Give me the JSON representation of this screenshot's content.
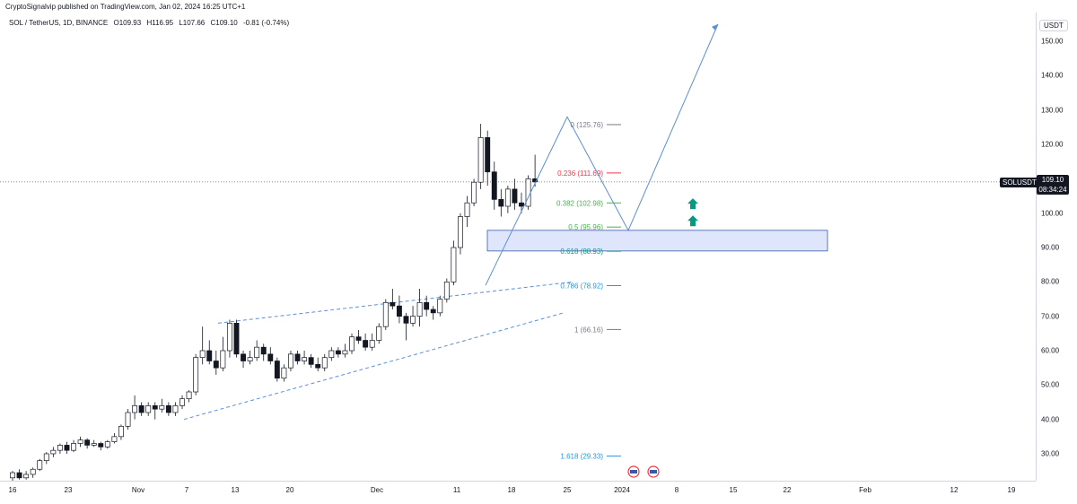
{
  "header": {
    "publisher": "CryptoSignalvip published on TradingView.com, Jan 02, 2024 16:25 UTC+1",
    "symbol": "SOL / TetherUS, 1D, BINANCE",
    "open": "O109.93",
    "high": "H116.95",
    "low": "L107.66",
    "close": "C109.10",
    "change": "-0.81 (-0.74%)"
  },
  "price_scale": {
    "currency": "USDT",
    "ticks": [
      "150.00",
      "140.00",
      "130.00",
      "120.00",
      "110.00",
      "100.00",
      "90.00",
      "80.00",
      "70.00",
      "60.00",
      "50.00",
      "40.00",
      "30.00"
    ],
    "last_symbol": "SOLUSDT",
    "last_price": "109.10",
    "countdown": "08:34:24"
  },
  "time_scale": {
    "ticks": [
      "16",
      "23",
      "Nov",
      "7",
      "13",
      "20",
      "Dec",
      "11",
      "18",
      "25",
      "2024",
      "8",
      "15",
      "22",
      "Feb",
      "12",
      "19"
    ]
  },
  "fib_levels": [
    {
      "label": "0 (125.76)",
      "color": "#787b86"
    },
    {
      "label": "0.236 (111.69)",
      "color": "#f23645"
    },
    {
      "label": "0.382 (102.98)",
      "color": "#4caf50"
    },
    {
      "label": "0.5 (95.96)",
      "color": "#4caf50"
    },
    {
      "label": "0.618 (88.93)",
      "color": "#089981"
    },
    {
      "label": "0.786 (78.92)",
      "color": "#2196f3"
    },
    {
      "label": "1 (66.16)",
      "color": "#787b86"
    },
    {
      "label": "1.618 (29.33)",
      "color": "#2196f3"
    }
  ],
  "colors": {
    "up_candle": "#ffffff",
    "down_candle": "#131722",
    "zone_fill": "#dfe6fb",
    "zone_border": "#3a5aa8",
    "trend_line": "#5b8fd8",
    "arrow_green": "#089981"
  },
  "chart_data": {
    "type": "candlestick",
    "title": "SOL / TetherUS, 1D, BINANCE",
    "ylim": [
      22,
      157
    ],
    "candles": [
      [
        23,
        24.5,
        22,
        25
      ],
      [
        24.5,
        23,
        22.5,
        25.5
      ],
      [
        23,
        24,
        22.5,
        25
      ],
      [
        24,
        25.5,
        23,
        26
      ],
      [
        25.5,
        28,
        25,
        28.5
      ],
      [
        28,
        30,
        27,
        30.5
      ],
      [
        30,
        31,
        29,
        32
      ],
      [
        31,
        32.5,
        30,
        33
      ],
      [
        32.5,
        31,
        30,
        33.5
      ],
      [
        31,
        33,
        30.5,
        34
      ],
      [
        33,
        34,
        32,
        35
      ],
      [
        34,
        32.5,
        31.5,
        34.5
      ],
      [
        32.5,
        33,
        32,
        34
      ],
      [
        33,
        32,
        31,
        33.5
      ],
      [
        32,
        33.5,
        31.5,
        34
      ],
      [
        33.5,
        35,
        33,
        36
      ],
      [
        35,
        38,
        34,
        38.5
      ],
      [
        38,
        42,
        37,
        43
      ],
      [
        42,
        44,
        40,
        47
      ],
      [
        44,
        42,
        41,
        45
      ],
      [
        42,
        44,
        41,
        45
      ],
      [
        44,
        43,
        40,
        45
      ],
      [
        43,
        44,
        42,
        46
      ],
      [
        44,
        42,
        41,
        45
      ],
      [
        42,
        44,
        41,
        45
      ],
      [
        44,
        46,
        43,
        47
      ],
      [
        46,
        48,
        45,
        48.5
      ],
      [
        48,
        58,
        47,
        59
      ],
      [
        58,
        60,
        56,
        67
      ],
      [
        60,
        57,
        56,
        63
      ],
      [
        57,
        55,
        53,
        60
      ],
      [
        55,
        60,
        54,
        64
      ],
      [
        60,
        68,
        58,
        69
      ],
      [
        68,
        59,
        58,
        69
      ],
      [
        59,
        57,
        55,
        60
      ],
      [
        57,
        58,
        56,
        60
      ],
      [
        58,
        61,
        57,
        63
      ],
      [
        61,
        59,
        57,
        62
      ],
      [
        59,
        57,
        56,
        61
      ],
      [
        57,
        52,
        51,
        58
      ],
      [
        52,
        55,
        51,
        56
      ],
      [
        55,
        59,
        54,
        60
      ],
      [
        59,
        57,
        56,
        60
      ],
      [
        57,
        58,
        56,
        60
      ],
      [
        58,
        56,
        55,
        59
      ],
      [
        56,
        55,
        54,
        58
      ],
      [
        55,
        58,
        54,
        59
      ],
      [
        58,
        60,
        57,
        61
      ],
      [
        60,
        59,
        58,
        61
      ],
      [
        59,
        60,
        58,
        62
      ],
      [
        60,
        64,
        59,
        65
      ],
      [
        64,
        63,
        62,
        66
      ],
      [
        63,
        61,
        60,
        65
      ],
      [
        61,
        63,
        60,
        65
      ],
      [
        63,
        67,
        62,
        68
      ],
      [
        67,
        74,
        66,
        75
      ],
      [
        74,
        73,
        72,
        78
      ],
      [
        73,
        70,
        68,
        76
      ],
      [
        70,
        68,
        63,
        71
      ],
      [
        68,
        70,
        67,
        73
      ],
      [
        70,
        74,
        67,
        78
      ],
      [
        74,
        72,
        70,
        76
      ],
      [
        72,
        71,
        69,
        73
      ],
      [
        71,
        75,
        70,
        76
      ],
      [
        75,
        80,
        74,
        81
      ],
      [
        80,
        90,
        79,
        92
      ],
      [
        90,
        99,
        88,
        100
      ],
      [
        99,
        103,
        96,
        105
      ],
      [
        103,
        109,
        102,
        110
      ],
      [
        109,
        122,
        107,
        126
      ],
      [
        122,
        112,
        108,
        124
      ],
      [
        112,
        104,
        101,
        115
      ],
      [
        104,
        102,
        99,
        107
      ],
      [
        102,
        107,
        100,
        108
      ],
      [
        107,
        103,
        101,
        110
      ],
      [
        103,
        102,
        100,
        106
      ],
      [
        102,
        110,
        101,
        111
      ],
      [
        110,
        109.1,
        107.7,
        117
      ]
    ],
    "resistance_line": "ascending channel upper",
    "support_line": "ascending channel lower",
    "zone": [
      89,
      95
    ]
  }
}
